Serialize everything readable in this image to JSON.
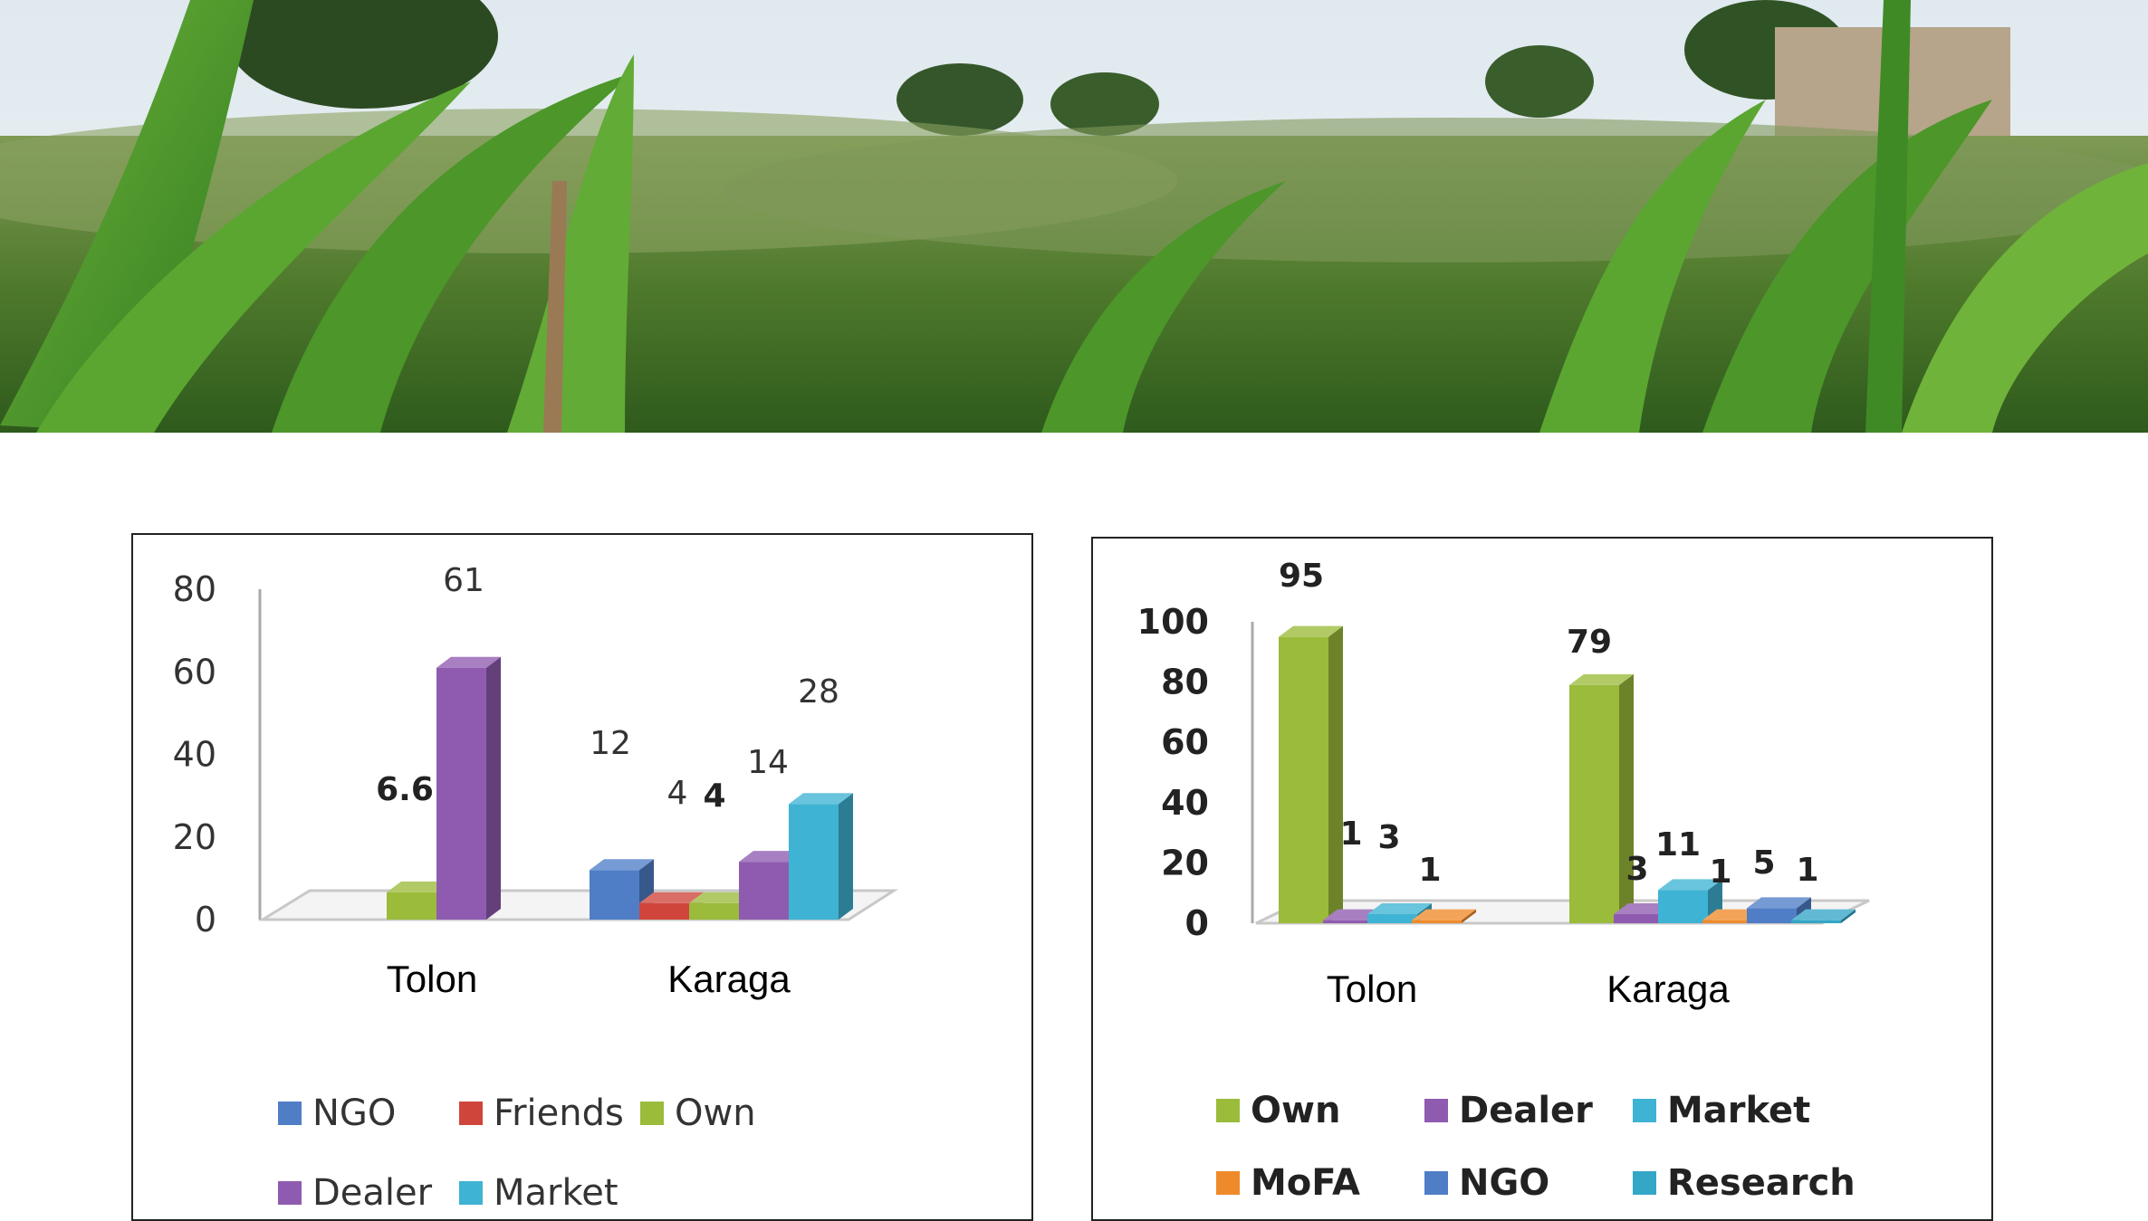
{
  "banner": {
    "icon": "maize-field-photo"
  },
  "colors": {
    "ngo": "#4f7ec7",
    "friends": "#d0453b",
    "own": "#9bbb3b",
    "dealer": "#8f5bb0",
    "market": "#3fb3d3",
    "mofa": "#ef8a2a",
    "research": "#34a6c6"
  },
  "chart_data": [
    {
      "type": "bar",
      "categories": [
        "Tolon",
        "Karaga"
      ],
      "ylim": [
        0,
        80
      ],
      "yticks": [
        "0",
        "20",
        "40",
        "60",
        "80"
      ],
      "legend_position": "bottom",
      "series": [
        {
          "name": "NGO",
          "values": [
            null,
            12
          ],
          "labels": [
            "",
            "12"
          ]
        },
        {
          "name": "Friends",
          "values": [
            null,
            4
          ],
          "labels": [
            "",
            "4"
          ]
        },
        {
          "name": "Own",
          "values": [
            6.6,
            4
          ],
          "labels": [
            "6.6",
            "4"
          ]
        },
        {
          "name": "Dealer",
          "values": [
            61,
            14
          ],
          "labels": [
            "61",
            "14"
          ]
        },
        {
          "name": "Market",
          "values": [
            null,
            28
          ],
          "labels": [
            "",
            "28"
          ]
        }
      ]
    },
    {
      "type": "bar",
      "categories": [
        "Tolon",
        "Karaga"
      ],
      "ylim": [
        0,
        100
      ],
      "yticks": [
        "0",
        "20",
        "40",
        "60",
        "80",
        "100"
      ],
      "legend_position": "bottom",
      "series": [
        {
          "name": "Own",
          "values": [
            95,
            79
          ],
          "labels": [
            "95",
            "79"
          ]
        },
        {
          "name": "Dealer",
          "values": [
            1,
            3
          ],
          "labels": [
            "1",
            "3"
          ]
        },
        {
          "name": "Market",
          "values": [
            3,
            11
          ],
          "labels": [
            "3",
            "11"
          ]
        },
        {
          "name": "MoFA",
          "values": [
            1,
            1
          ],
          "labels": [
            "1",
            "1"
          ]
        },
        {
          "name": "NGO",
          "values": [
            null,
            5
          ],
          "labels": [
            "",
            "5"
          ]
        },
        {
          "name": "Research",
          "values": [
            null,
            1
          ],
          "labels": [
            "",
            "1"
          ]
        }
      ]
    }
  ]
}
